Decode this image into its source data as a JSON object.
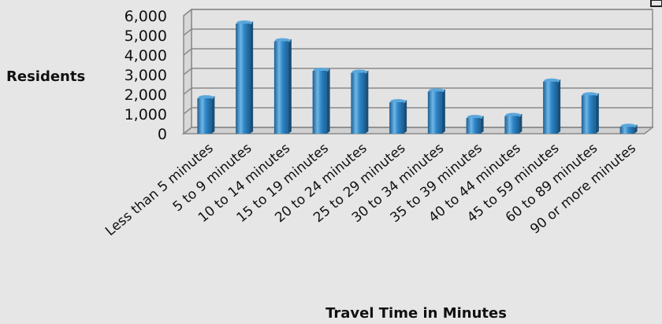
{
  "chart_data": {
    "type": "bar",
    "title": "",
    "xlabel": "Travel Time in Minutes",
    "ylabel": "Residents",
    "ylim": [
      0,
      6000
    ],
    "yticks": [
      "0",
      "1,000",
      "2,000",
      "3,000",
      "4,000",
      "5,000",
      "6,000"
    ],
    "grid": true,
    "categories": [
      "Less than 5 minutes",
      "5 to 9 minutes",
      "10 to 14 minutes",
      "15 to 19 minutes",
      "20 to 24 minutes",
      "25 to 29 minutes",
      "30 to 34 minutes",
      "35 to 39 minutes",
      "40 to 44 minutes",
      "45 to 59 minutes",
      "60 to 89 minutes",
      "90 or more minutes"
    ],
    "values": [
      1800,
      5600,
      4700,
      3200,
      3100,
      1600,
      2150,
      800,
      900,
      2650,
      1950,
      350
    ],
    "colors": {
      "bar": "#2e86c8",
      "bar_light": "#6fb6e6",
      "bar_dark": "#1c5f93",
      "grid": "#8a8a8a",
      "background": "#e6e6e6"
    }
  }
}
